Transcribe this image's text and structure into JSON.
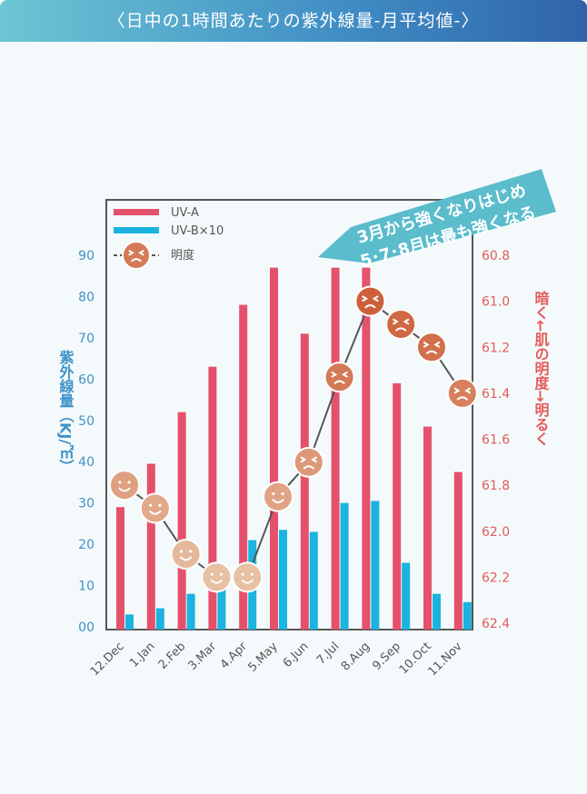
{
  "header": {
    "title": "〈日中の1時間あたりの紫外線量-月平均値-〉"
  },
  "callout": {
    "line1": "3月から強くなりはじめ",
    "line2": "5･7･8月は最も強くなる"
  },
  "colors": {
    "uva": "#e5506b",
    "uvb": "#1bb3df",
    "left_axis": "#3f92c9",
    "right_axis": "#e55a5a",
    "callout": "#5bbccc"
  },
  "chart_data": {
    "type": "bar",
    "categories": [
      "12.Dec",
      "1.Jan",
      "2.Feb",
      "3.Mar",
      "4.Apr",
      "5.May",
      "6.Jun",
      "7.Jul",
      "8.Aug",
      "9.Sep",
      "10.Oct",
      "11.Nov"
    ],
    "series": [
      {
        "name": "UV-A",
        "values": [
          29,
          39.5,
          52,
          63,
          78,
          87,
          71,
          87,
          87,
          59,
          48.5,
          37.5
        ]
      },
      {
        "name": "UV-B×10",
        "values": [
          3,
          4.5,
          8,
          10,
          21,
          23.5,
          23,
          30,
          30.5,
          15.5,
          8,
          6
        ]
      },
      {
        "name": "明度",
        "axis": "right",
        "values": [
          61.8,
          61.9,
          62.1,
          62.2,
          62.2,
          61.85,
          61.7,
          61.33,
          61.0,
          61.1,
          61.2,
          61.4
        ]
      }
    ],
    "ylabel": "紫外線量（KJ/㎡）",
    "y2label": "暗く←肌の明度→明るく",
    "yticks": [
      "00",
      "10",
      "20",
      "30",
      "40",
      "50",
      "60",
      "70",
      "80",
      "90"
    ],
    "ylim": [
      0,
      100
    ],
    "y2ticks": [
      "60.8",
      "61.0",
      "61.2",
      "61.4",
      "61.6",
      "61.8",
      "62.0",
      "62.2",
      "62.4"
    ],
    "y2lim": [
      62.4,
      60.8
    ],
    "legend": [
      "UV-A",
      "UV-B×10",
      "明度"
    ],
    "legend_position": "top-left"
  }
}
